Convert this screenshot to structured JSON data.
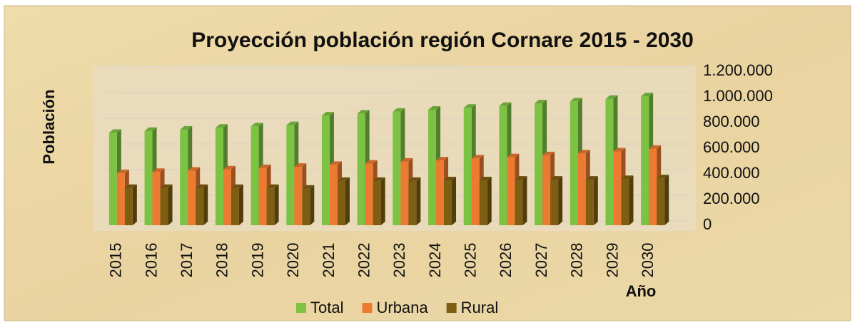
{
  "chart_data": {
    "type": "bar",
    "title": "Proyección población región Cornare 2015 - 2030",
    "y_label": "Población",
    "x_label": "Año",
    "categories": [
      "2015",
      "2016",
      "2017",
      "2018",
      "2019",
      "2020",
      "2021",
      "2022",
      "2023",
      "2024",
      "2025",
      "2026",
      "2027",
      "2028",
      "2029",
      "2030"
    ],
    "series": [
      {
        "name": "Total",
        "color": "#7cc243",
        "values": [
          720000,
          735000,
          745000,
          760000,
          770000,
          780000,
          855000,
          870000,
          885000,
          900000,
          915000,
          930000,
          950000,
          965000,
          985000,
          1005000
        ]
      },
      {
        "name": "Urbana",
        "color": "#ec7a30",
        "values": [
          405000,
          415000,
          425000,
          435000,
          445000,
          455000,
          470000,
          480000,
          495000,
          505000,
          520000,
          530000,
          545000,
          560000,
          575000,
          595000
        ]
      },
      {
        "name": "Rural",
        "color": "#7d5e12",
        "values": [
          290000,
          290000,
          290000,
          290000,
          290000,
          285000,
          345000,
          345000,
          345000,
          350000,
          350000,
          355000,
          355000,
          355000,
          360000,
          365000
        ]
      }
    ],
    "ylim": [
      0,
      1200000
    ],
    "yticks": [
      0,
      {
        "value": 200000,
        "label": "200.000"
      },
      {
        "value": 400000,
        "label": "400.000"
      },
      {
        "value": 600000,
        "label": "600.000"
      },
      {
        "value": 800000,
        "label": "800.000"
      },
      {
        "value": 1000000,
        "label": "1.000.000"
      },
      {
        "value": 1200000,
        "label": "1.200.000"
      }
    ],
    "grid": true,
    "legend": "bottom"
  }
}
